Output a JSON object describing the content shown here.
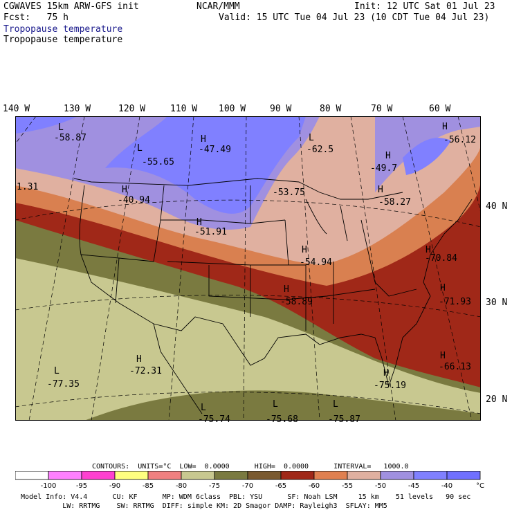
{
  "header": {
    "left1": "CGWAVES 15km ARW-GFS init",
    "left2": "Fcst:   75 h",
    "center": "NCAR/MMM",
    "init": "Init: 12 UTC Sat 01 Jul 23",
    "valid": "Valid: 15 UTC Tue 04 Jul 23 (10 CDT Tue 04 Jul 23)",
    "field1": "Tropopause temperature",
    "field2": "Tropopause temperature"
  },
  "axes": {
    "lon_labels": [
      "140 W",
      "130 W",
      "120 W",
      "110 W",
      "100 W",
      "90 W",
      "80 W",
      "70 W",
      "60 W"
    ],
    "lat_labels": [
      "40 N",
      "30 N",
      "20 N"
    ]
  },
  "map_labels": [
    {
      "kind": "L",
      "value": "-58.87"
    },
    {
      "kind": "L",
      "value": "-55.65"
    },
    {
      "kind": "H",
      "value": "-47.49"
    },
    {
      "kind": "L",
      "value": "-62.5"
    },
    {
      "kind": "H",
      "value": "-56.12"
    },
    {
      "kind": "H",
      "value": "-49.7"
    },
    {
      "kind": "",
      "value": "1.31"
    },
    {
      "kind": "H",
      "value": "-40.94"
    },
    {
      "kind": "",
      "value": "-53.75"
    },
    {
      "kind": "H",
      "value": "-58.27"
    },
    {
      "kind": "H",
      "value": "-51.91"
    },
    {
      "kind": "H",
      "value": "-70.84"
    },
    {
      "kind": "H",
      "value": "-54.94"
    },
    {
      "kind": "H",
      "value": "-58.89"
    },
    {
      "kind": "H",
      "value": "-71.93"
    },
    {
      "kind": "H",
      "value": "-72.31"
    },
    {
      "kind": "H",
      "value": "-66.13"
    },
    {
      "kind": "L",
      "value": "-77.35"
    },
    {
      "kind": "H",
      "value": "-75.19"
    },
    {
      "kind": "L",
      "value": "-75.74"
    },
    {
      "kind": "L",
      "value": "-75.68"
    },
    {
      "kind": "L",
      "value": "-75.87"
    }
  ],
  "contours_line": "CONTOURS:  UNITS=°C  LOW=  0.0000      HIGH=  0.0000      INTERVAL=   1000.0",
  "legend": {
    "colors": [
      "#ffffff",
      "#ff80ff",
      "#ff40d0",
      "#ffff80",
      "#f08080",
      "#c8c890",
      "#7a7a40",
      "#7a5a30",
      "#a02818",
      "#e08050",
      "#e0b0a0",
      "#a090e0",
      "#8080ff",
      "#7070ff"
    ],
    "ticks": [
      "-100",
      "-95",
      "-90",
      "-85",
      "-80",
      "-75",
      "-70",
      "-65",
      "-60",
      "-55",
      "-50",
      "-45",
      "-40"
    ],
    "unit": "°C"
  },
  "footer": {
    "line1": "Model Info: V4.4      CU: KF      MP: WDM 6class  PBL: YSU      SF: Noah LSM     15 km    51 levels   90 sec",
    "line2": "          LW: RRTMG    SW: RRTMG  DIFF: simple KM: 2D Smagor DAMP: Rayleigh3  SFLAY: MM5"
  }
}
